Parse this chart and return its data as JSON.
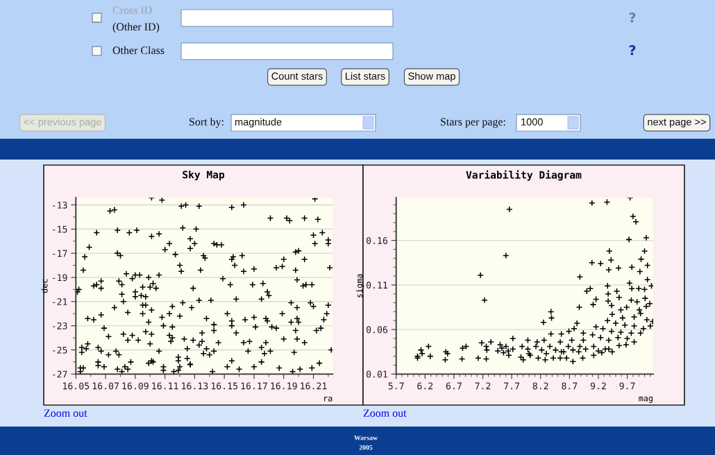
{
  "chart_data": [
    {
      "type": "other",
      "annotations": [
        "Cross ID",
        "(Other ID)",
        "?",
        "Other Class",
        "?",
        "Count stars",
        "List stars",
        "Show map",
        "<< previous page",
        "Sort by:",
        "magnitude",
        "Stars per page:",
        "1000",
        "next page >>"
      ]
    },
    {
      "type": "scatter",
      "title": "Sky Map",
      "xlabel": "ra",
      "ylabel": "dec",
      "xlim": [
        16.05,
        16.223
      ],
      "ylim": [
        -27,
        -12.4
      ],
      "xticks": [
        16.05,
        {
          "value": 16.06,
          "label": null
        },
        16.07,
        {
          "value": 16.08,
          "label": null
        },
        16.09,
        {
          "value": 16.1,
          "label": null
        },
        16.11,
        {
          "value": 16.12,
          "label": null
        },
        16.13,
        {
          "value": 16.14,
          "label": null
        },
        16.15,
        {
          "value": 16.16,
          "label": null
        },
        16.17,
        {
          "value": 16.18,
          "label": null
        },
        16.19,
        {
          "value": 16.2,
          "label": null
        },
        16.21,
        {
          "value": 16.22,
          "label": null
        }
      ],
      "yticks": [
        -27,
        {
          "value": -26,
          "label": null
        },
        -25,
        {
          "value": -24,
          "label": null
        },
        -23,
        {
          "value": -22,
          "label": null
        },
        -21,
        {
          "value": -20,
          "label": null
        },
        -19,
        {
          "value": -18,
          "label": null
        },
        -17,
        {
          "value": -16,
          "label": null
        },
        -15,
        {
          "value": -14,
          "label": null
        },
        -13
      ],
      "grid": "y",
      "marker": "cross",
      "annotations": [
        "Zoom out"
      ],
      "series": [
        {
          "color": "#000000",
          "x": [
            16.101,
            16.108,
            16.073,
            16.076,
            16.078,
            16.064,
            16.086,
            16.091,
            16.101,
            16.106,
            16.059,
            16.056,
            16.078,
            16.08,
            16.055,
            16.051,
            16.052,
            16.067,
            16.062,
            16.064,
            16.067,
            16.079,
            16.081,
            16.084,
            16.088,
            16.09,
            16.093,
            16.099,
            16.106,
            16.102,
            16.104,
            16.1,
            16.095,
            16.09,
            16.081,
            16.09,
            16.094,
            16.097,
            16.082,
            16.095,
            16.097,
            16.101,
            16.076,
            16.085,
            16.095,
            16.115,
            16.113,
            16.108,
            16.12,
            16.122,
            16.067,
            16.058,
            16.062,
            16.099,
            16.109,
            16.115,
            16.069,
            16.072,
            16.082,
            16.088,
            16.085,
            16.092,
            16.097,
            16.101,
            16.1,
            16.113,
            16.115,
            16.114,
            16.123,
            16.058,
            16.054,
            16.054,
            16.057,
            16.065,
            16.067,
            16.072,
            16.077,
            16.079,
            16.106,
            16.125,
            16.119,
            16.119,
            16.125,
            16.127,
            16.065,
            16.065,
            16.069,
            16.087,
            16.099,
            16.101,
            16.102,
            16.083,
            16.085,
            16.078,
            16.081,
            16.053,
            16.055,
            16.053,
            16.109,
            16.109,
            16.116,
            16.119,
            16.12,
            16.122,
            16.127,
            16.127,
            16.11,
            16.113,
            16.117,
            16.12,
            16.121,
            16.121,
            16.124,
            16.133,
            16.155,
            16.163,
            16.211,
            16.181,
            16.192,
            16.194,
            16.204,
            16.213,
            16.131,
            16.13,
            16.143,
            16.145,
            16.148,
            16.21,
            16.211,
            16.216,
            16.22,
            16.22,
            16.136,
            16.137,
            16.134,
            16.155,
            16.156,
            16.157,
            16.162,
            16.163,
            16.17,
            16.185,
            16.189,
            16.19,
            16.198,
            16.198,
            16.2,
            16.204,
            16.221,
            16.149,
            16.154,
            16.169,
            16.176,
            16.179,
            16.18,
            16.175,
            16.158,
            16.129,
            16.133,
            16.141,
            16.128,
            16.199,
            16.203,
            16.205,
            16.209,
            16.195,
            16.199,
            16.208,
            16.21,
            16.22,
            16.219,
            16.217,
            16.215,
            16.212,
            16.199,
            16.195,
            16.2,
            16.198,
            16.199,
            16.189,
            16.179,
            16.178,
            16.182,
            16.185,
            16.171,
            16.17,
            16.164,
            16.152,
            16.155,
            16.155,
            16.158,
            16.143,
            16.143,
            16.138,
            16.135,
            16.129,
            16.135,
            16.133,
            16.138,
            16.146,
            16.136,
            16.14,
            16.143,
            16.163,
            16.167,
            16.166,
            16.175,
            16.178,
            16.177,
            16.181,
            16.19,
            16.204,
            16.197,
            16.175,
            16.155,
            16.152,
            16.16,
            16.17,
            16.142,
            16.127,
            16.187,
            16.196,
            16.201,
            16.209,
            16.214,
            16.222
          ],
          "values": [
            -12.4,
            -12.6,
            -13.5,
            -13.4,
            -15.1,
            -15.3,
            -15.3,
            -15.1,
            -15.6,
            -15.4,
            -16.5,
            -17.3,
            -17.0,
            -17.2,
            -18.4,
            -20.2,
            -20.0,
            -19.3,
            -19.7,
            -19.6,
            -19.9,
            -19.3,
            -19.6,
            -18.7,
            -19.1,
            -18.8,
            -18.8,
            -19.0,
            -18.8,
            -19.5,
            -19.9,
            -19.8,
            -19.8,
            -20.2,
            -20.4,
            -20.6,
            -20.5,
            -20.6,
            -21.0,
            -21.3,
            -21.3,
            -21.7,
            -21.5,
            -21.9,
            -22.0,
            -21.4,
            -22.0,
            -22.3,
            -22.2,
            -21.1,
            -22.1,
            -22.4,
            -22.5,
            -22.7,
            -23.0,
            -23.1,
            -23.2,
            -23.9,
            -23.7,
            -23.8,
            -24.2,
            -24.2,
            -23.5,
            -23.7,
            -24.5,
            -23.8,
            -24.0,
            -24.3,
            -24.1,
            -24.5,
            -24.8,
            -25.2,
            -24.9,
            -24.8,
            -25.1,
            -25.4,
            -25.1,
            -25.4,
            -25.1,
            -24.9,
            -25.6,
            -25.9,
            -25.7,
            -26.2,
            -26.0,
            -26.3,
            -26.4,
            -26.0,
            -26.1,
            -25.9,
            -26.0,
            -26.4,
            -26.6,
            -26.6,
            -26.8,
            -26.5,
            -26.5,
            -26.8,
            -26.4,
            -26.7,
            -26.8,
            -26.7,
            -26.4,
            -14.9,
            -15.8,
            -16.6,
            -16.7,
            -16.2,
            -17.1,
            -18.0,
            -18.5,
            -13.1,
            -13.0,
            -13.1,
            -13.2,
            -13.0,
            -12.5,
            -14.1,
            -14.1,
            -14.3,
            -14.1,
            -14.2,
            -15.0,
            -16.2,
            -16.2,
            -16.3,
            -16.3,
            -15.5,
            -16.2,
            -15.3,
            -15.9,
            -16.2,
            -17.2,
            -17.4,
            -18.4,
            -17.5,
            -17.3,
            -18.0,
            -17.2,
            -18.5,
            -18.3,
            -18.2,
            -18.1,
            -17.5,
            -18.4,
            -16.9,
            -16.8,
            -17.5,
            -18.2,
            -19.1,
            -19.6,
            -19.6,
            -19.5,
            -20.2,
            -20.5,
            -20.8,
            -20.8,
            -19.9,
            -20.9,
            -20.9,
            -21.5,
            -19.2,
            -19.7,
            -19.6,
            -19.6,
            -21.1,
            -21.5,
            -21.1,
            -21.4,
            -21.3,
            -22.0,
            -22.5,
            -23.2,
            -23.4,
            -22.4,
            -22.7,
            -22.7,
            -23.4,
            -24.1,
            -22.0,
            -22.6,
            -22.4,
            -23.1,
            -23.2,
            -23.1,
            -22.3,
            -22.5,
            -22.0,
            -22.6,
            -23.0,
            -23.6,
            -22.9,
            -23.4,
            -22.4,
            -23.6,
            -24.2,
            -24.3,
            -24.6,
            -24.9,
            -24.4,
            -25.3,
            -25.4,
            -25.1,
            -24.4,
            -24.3,
            -25.1,
            -24.8,
            -24.4,
            -25.3,
            -25.1,
            -24.1,
            -24.4,
            -25.2,
            -26.0,
            -25.9,
            -26.4,
            -26.6,
            -26.4,
            -26.8,
            -26.2,
            -26.5,
            -26.8,
            -26.6,
            -26.5,
            -26.1,
            -25.0
          ]
        }
      ]
    },
    {
      "type": "scatter",
      "title": "Variability Diagram",
      "xlabel": "mag",
      "ylabel": "sigma",
      "xlim": [
        5.7,
        10.15
      ],
      "ylim": [
        0.01,
        0.208
      ],
      "xticks": [
        5.7,
        {
          "value": 5.8,
          "label": null
        },
        {
          "value": 5.9,
          "label": null
        },
        {
          "value": 6.0,
          "label": null
        },
        {
          "value": 6.1,
          "label": null
        },
        6.2,
        {
          "value": 6.3,
          "label": null
        },
        {
          "value": 6.4,
          "label": null
        },
        {
          "value": 6.5,
          "label": null
        },
        {
          "value": 6.6,
          "label": null
        },
        6.7,
        {
          "value": 6.8,
          "label": null
        },
        {
          "value": 6.9,
          "label": null
        },
        {
          "value": 7.0,
          "label": null
        },
        {
          "value": 7.1,
          "label": null
        },
        7.2,
        {
          "value": 7.3,
          "label": null
        },
        {
          "value": 7.4,
          "label": null
        },
        {
          "value": 7.5,
          "label": null
        },
        {
          "value": 7.6,
          "label": null
        },
        7.7,
        {
          "value": 7.8,
          "label": null
        },
        {
          "value": 7.9,
          "label": null
        },
        {
          "value": 8.0,
          "label": null
        },
        {
          "value": 8.1,
          "label": null
        },
        8.2,
        {
          "value": 8.3,
          "label": null
        },
        {
          "value": 8.4,
          "label": null
        },
        {
          "value": 8.5,
          "label": null
        },
        {
          "value": 8.6,
          "label": null
        },
        8.7,
        {
          "value": 8.8,
          "label": null
        },
        {
          "value": 8.9,
          "label": null
        },
        {
          "value": 9.0,
          "label": null
        },
        {
          "value": 9.1,
          "label": null
        },
        9.2,
        {
          "value": 9.3,
          "label": null
        },
        {
          "value": 9.4,
          "label": null
        },
        {
          "value": 9.5,
          "label": null
        },
        {
          "value": 9.6,
          "label": null
        },
        9.7,
        {
          "value": 9.8,
          "label": null
        },
        {
          "value": 9.9,
          "label": null
        },
        {
          "value": 10.0,
          "label": null
        },
        {
          "value": 10.1,
          "label": null
        }
      ],
      "yticks": [
        0.01,
        {
          "value": 0.02,
          "label": null
        },
        {
          "value": 0.03,
          "label": null
        },
        {
          "value": 0.04,
          "label": null
        },
        {
          "value": 0.05,
          "label": null
        },
        0.06,
        {
          "value": 0.07,
          "label": null
        },
        {
          "value": 0.08,
          "label": null
        },
        {
          "value": 0.09,
          "label": null
        },
        {
          "value": 0.1,
          "label": null
        },
        0.11,
        {
          "value": 0.12,
          "label": null
        },
        {
          "value": 0.13,
          "label": null
        },
        {
          "value": 0.14,
          "label": null
        },
        {
          "value": 0.15,
          "label": null
        },
        0.16,
        {
          "value": 0.17,
          "label": null
        },
        {
          "value": 0.18,
          "label": null
        },
        {
          "value": 0.19,
          "label": null
        },
        {
          "value": 0.2,
          "label": null
        }
      ],
      "grid": "y",
      "marker": "cross",
      "annotations": [
        "Zoom out"
      ],
      "series": [
        {
          "color": "#000000",
          "x": [
            6.07,
            6.07,
            6.13,
            6.15,
            6.26,
            6.29,
            6.55,
            6.56,
            6.59,
            6.84,
            6.85,
            6.91,
            7.12,
            7.16,
            7.18,
            7.23,
            7.26,
            7.27,
            7.26,
            7.34,
            7.46,
            7.5,
            7.53,
            7.56,
            7.6,
            7.6,
            7.64,
            7.66,
            7.65,
            7.72,
            7.72,
            9.09,
            9.35,
            9.75,
            9.8,
            9.85,
            9.73,
            10.03,
            9.39,
            9.42,
            10.0,
            9.94,
            9.09,
            9.24,
            8.88,
            9.38,
            9.55,
            9.78,
            9.92,
            10.05,
            9.74,
            10.05,
            9.36,
            9.0,
            9.06,
            9.37,
            9.52,
            9.78,
            9.9,
            10.0,
            10.12,
            9.16,
            9.11,
            8.87,
            9.37,
            9.56,
            9.77,
            9.87,
            10.01,
            10.09,
            9.43,
            9.59,
            9.69,
            9.91,
            10.03,
            8.38,
            8.39,
            8.25,
            8.83,
            9.44,
            9.62,
            9.82,
            9.93,
            10.04,
            10.14,
            9.36,
            9.5,
            9.66,
            9.82,
            9.98,
            10.1,
            9.28,
            9.16,
            8.78,
            8.69,
            8.38,
            8.56,
            8.94,
            9.1,
            9.43,
            9.59,
            9.77,
            9.93,
            9.24,
            9.38,
            9.54,
            9.7,
            9.82,
            8.94,
            8.74,
            8.54,
            8.26,
            8.14,
            7.98,
            7.88,
            7.98,
            8.12,
            8.22,
            8.36,
            8.46,
            8.56,
            8.68,
            8.76,
            8.88,
            8.98,
            9.12,
            9.2,
            9.32,
            9.44,
            9.56,
            9.68,
            7.86,
            7.9,
            8.02,
            8.16,
            8.28,
            8.42,
            8.54,
            8.65,
            8.76,
            8.86,
            8.93,
            9.12,
            9.26,
            9.38,
            8.0,
            8.6,
            8.3
          ],
          "values": [
            0.028,
            0.03,
            0.037,
            0.033,
            0.041,
            0.03,
            0.026,
            0.035,
            0.033,
            0.027,
            0.039,
            0.041,
            0.028,
            0.121,
            0.045,
            0.093,
            0.041,
            0.037,
            0.027,
            0.046,
            0.036,
            0.043,
            0.039,
            0.034,
            0.143,
            0.041,
            0.036,
            0.195,
            0.031,
            0.038,
            0.05,
            0.202,
            0.203,
            0.208,
            0.187,
            0.181,
            0.161,
            0.163,
            0.148,
            0.138,
            0.148,
            0.139,
            0.135,
            0.134,
            0.119,
            0.127,
            0.129,
            0.13,
            0.125,
            0.132,
            0.112,
            0.116,
            0.109,
            0.103,
            0.106,
            0.1,
            0.103,
            0.106,
            0.106,
            0.105,
            0.109,
            0.094,
            0.088,
            0.085,
            0.092,
            0.096,
            0.093,
            0.091,
            0.095,
            0.089,
            0.087,
            0.082,
            0.085,
            0.082,
            0.086,
            0.08,
            0.073,
            0.068,
            0.067,
            0.077,
            0.073,
            0.074,
            0.078,
            0.071,
            0.069,
            0.07,
            0.067,
            0.065,
            0.064,
            0.061,
            0.064,
            0.061,
            0.063,
            0.061,
            0.058,
            0.055,
            0.055,
            0.056,
            0.054,
            0.058,
            0.057,
            0.056,
            0.056,
            0.051,
            0.048,
            0.051,
            0.05,
            0.046,
            0.048,
            0.048,
            0.046,
            0.048,
            0.046,
            0.048,
            0.041,
            0.038,
            0.041,
            0.037,
            0.041,
            0.037,
            0.035,
            0.041,
            0.037,
            0.041,
            0.038,
            0.041,
            0.036,
            0.038,
            0.035,
            0.042,
            0.043,
            0.029,
            0.026,
            0.031,
            0.028,
            0.026,
            0.028,
            0.028,
            0.028,
            0.024,
            0.035,
            0.028,
            0.031,
            0.034,
            0.038,
            0.033,
            0.035,
            0.033
          ]
        }
      ]
    },
    {
      "type": "other",
      "annotations": [
        "Warsaw",
        "2005"
      ]
    }
  ]
}
